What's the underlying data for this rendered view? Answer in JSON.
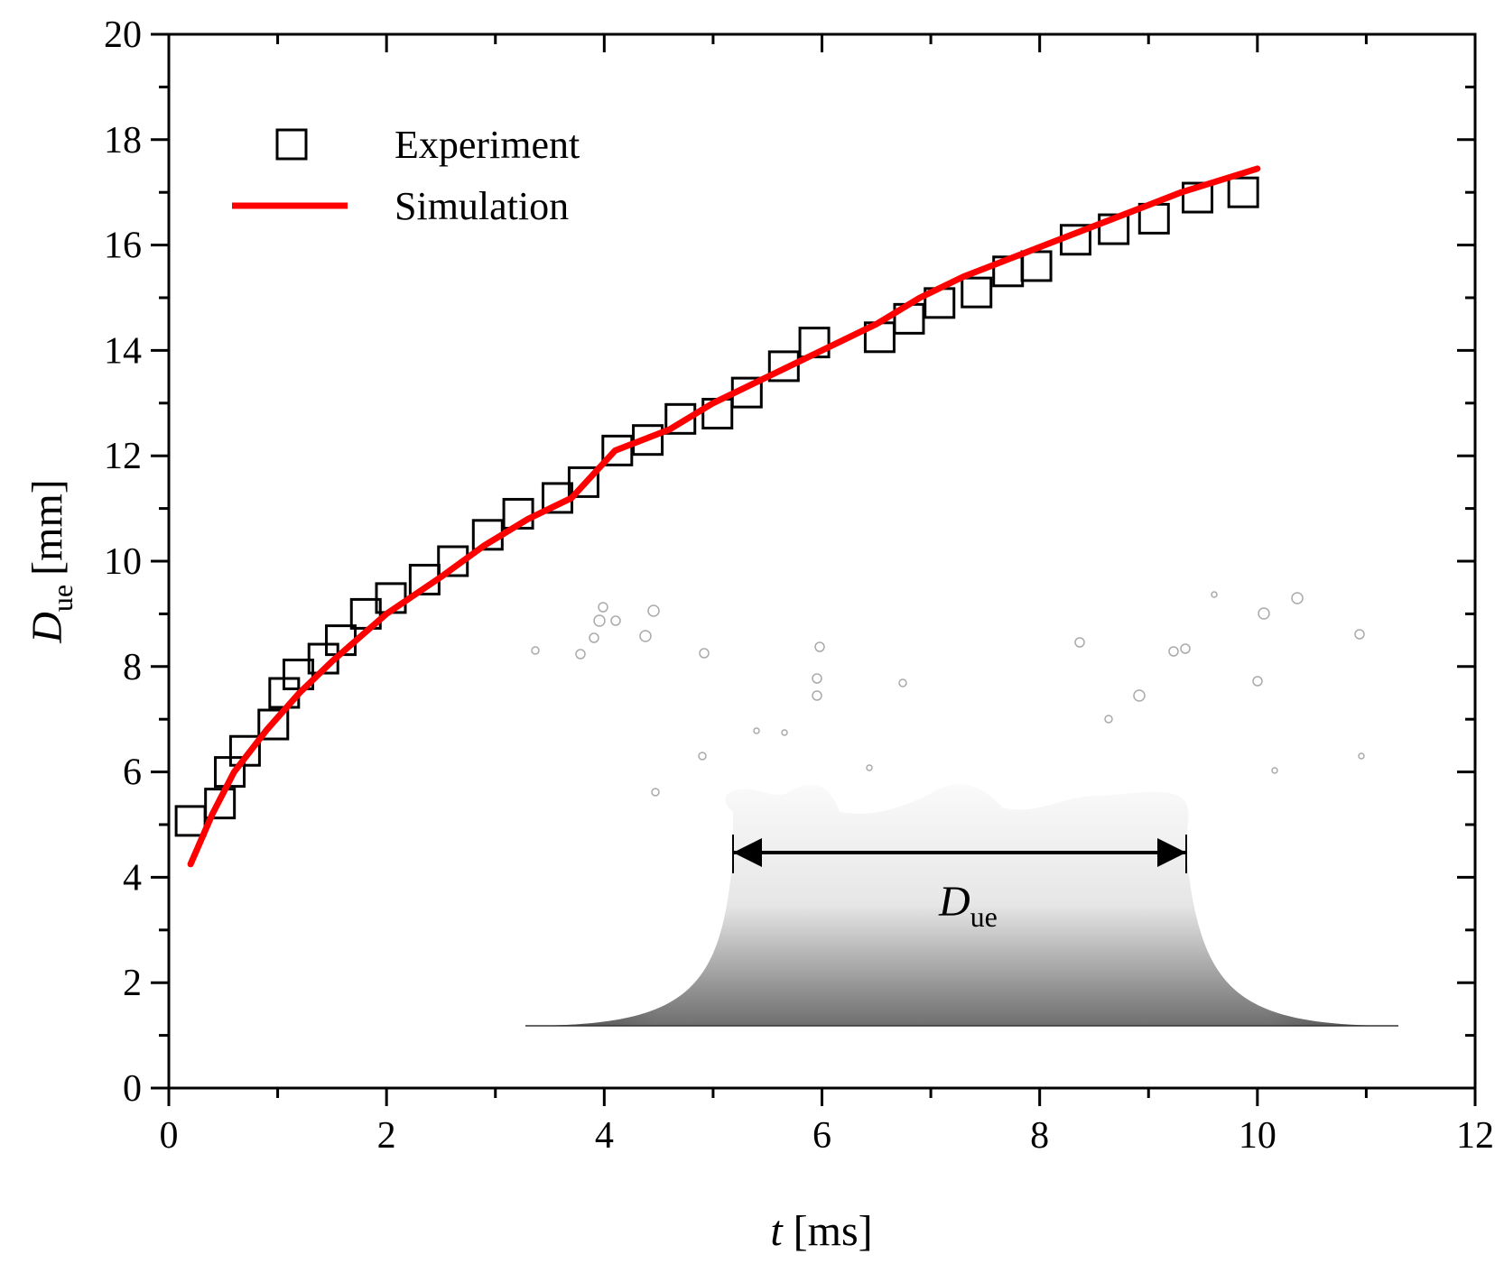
{
  "chart_data": {
    "type": "scatter-line",
    "xlabel": {
      "symbol": "t",
      "unit": "[ms]"
    },
    "ylabel": {
      "symbol": "D",
      "subscript": "ue",
      "unit": "[mm]"
    },
    "annotation": {
      "symbol": "D",
      "subscript": "ue"
    },
    "xlim": [
      0,
      12
    ],
    "xticks": [
      0,
      2,
      4,
      6,
      8,
      10,
      12
    ],
    "ylim": [
      0,
      20
    ],
    "yticks": [
      0,
      2,
      4,
      6,
      8,
      10,
      12,
      14,
      16,
      18,
      20
    ],
    "legend": "upper left",
    "series": [
      {
        "name": "Experiment",
        "color": "#000000",
        "marker": "square",
        "x": [
          0.2,
          0.47,
          0.56,
          0.7,
          0.96,
          1.06,
          1.19,
          1.42,
          1.58,
          1.81,
          2.04,
          2.35,
          2.61,
          2.93,
          3.21,
          3.57,
          3.81,
          4.12,
          4.4,
          4.7,
          5.04,
          5.31,
          5.65,
          5.93,
          6.53,
          6.8,
          7.08,
          7.42,
          7.71,
          7.97,
          8.33,
          8.68,
          9.05,
          9.45,
          9.87
        ],
        "values": [
          5.07,
          5.4,
          6.0,
          6.4,
          6.9,
          7.5,
          7.85,
          8.15,
          8.5,
          9.0,
          9.3,
          9.65,
          10.0,
          10.5,
          10.9,
          11.2,
          11.5,
          12.1,
          12.3,
          12.7,
          12.8,
          13.2,
          13.7,
          14.15,
          14.25,
          14.6,
          14.9,
          15.1,
          15.5,
          15.6,
          16.1,
          16.3,
          16.5,
          16.9,
          17.0
        ]
      },
      {
        "name": "Simulation",
        "color": "#ff0000",
        "marker": "line",
        "x": [
          0.2,
          0.4,
          0.6,
          0.9,
          1.2,
          1.5,
          2.0,
          2.5,
          2.9,
          3.3,
          3.7,
          4.1,
          4.6,
          5.0,
          5.5,
          6.0,
          6.5,
          6.9,
          7.3,
          7.8,
          8.3,
          8.8,
          9.3,
          10.0
        ],
        "values": [
          4.25,
          5.2,
          6.0,
          6.8,
          7.5,
          8.1,
          9.0,
          9.7,
          10.3,
          10.8,
          11.2,
          12.1,
          12.5,
          13.0,
          13.5,
          14.0,
          14.5,
          15.0,
          15.4,
          15.8,
          16.2,
          16.6,
          17.0,
          17.45
        ]
      }
    ]
  }
}
